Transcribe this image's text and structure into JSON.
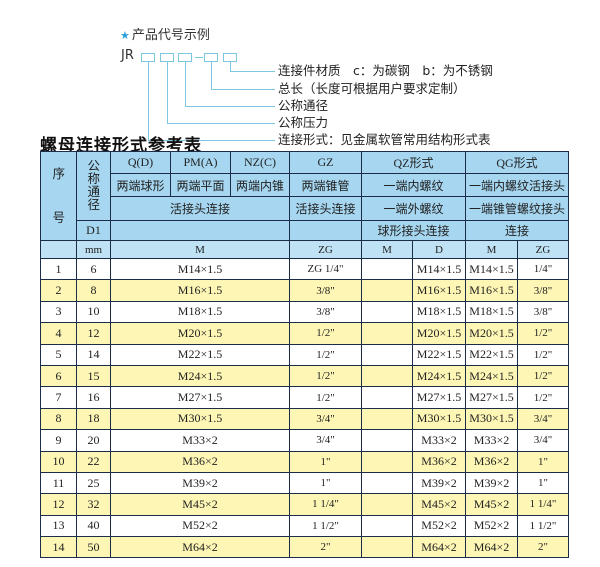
{
  "code_example": {
    "title": "产品代号示例",
    "star_icon": "star-icon",
    "prefix": "JR",
    "separator": "-",
    "labels": [
      "连接件材质　c：为碳钢　b：为不锈钢",
      "总长（长度可根据用户要求定制）",
      "公称通径",
      "公称压力",
      "连接形式：见金属软管常用结构形式表"
    ]
  },
  "table_title": "螺母连接形式参考表",
  "colors": {
    "header": "#a6d6f0",
    "stripe": "#fdf6b5",
    "border": "#1c2d4a",
    "line": "#7cc8e0"
  },
  "header": {
    "seq": "序号",
    "dn": "公称通径",
    "row1": {
      "q": "Q(D)",
      "pm": "PM(A)",
      "nz": "NZ(C)",
      "gz": "GZ",
      "qz": "QZ形式",
      "qg": "QG形式"
    },
    "row2": {
      "q": "两端球形",
      "pm": "两端平面",
      "nz": "两端内锥",
      "gz": "两端锥管",
      "qz": "一端内螺纹",
      "qg": "一端内螺纹活接头"
    },
    "row3": {
      "qpmnz": "活接头连接",
      "gz": "活接头连接",
      "qz": "一端外螺纹",
      "qg": "一端锥管螺纹接头"
    },
    "row4": {
      "d1": "D1",
      "qz": "球形接头连接",
      "qg": "连接"
    },
    "row5": {
      "unit": "mm",
      "m": "M",
      "zg": "ZG",
      "qz_m": "M",
      "qz_d": "D",
      "qg_m": "M",
      "qg_zg": "ZG"
    }
  },
  "rows": [
    {
      "no": "1",
      "dn": "6",
      "m": "M14×1.5",
      "zg": "ZG 1/4\"",
      "qz_m": "",
      "qz_d": "M14×1.5",
      "qg_m": "M14×1.5",
      "qg_zg": "1/4\""
    },
    {
      "no": "2",
      "dn": "8",
      "m": "M16×1.5",
      "zg": "3/8\"",
      "qz_m": "",
      "qz_d": "M16×1.5",
      "qg_m": "M16×1.5",
      "qg_zg": "3/8\""
    },
    {
      "no": "3",
      "dn": "10",
      "m": "M18×1.5",
      "zg": "3/8\"",
      "qz_m": "",
      "qz_d": "M18×1.5",
      "qg_m": "M18×1.5",
      "qg_zg": "3/8\""
    },
    {
      "no": "4",
      "dn": "12",
      "m": "M20×1.5",
      "zg": "1/2\"",
      "qz_m": "",
      "qz_d": "M20×1.5",
      "qg_m": "M20×1.5",
      "qg_zg": "1/2\""
    },
    {
      "no": "5",
      "dn": "14",
      "m": "M22×1.5",
      "zg": "1/2\"",
      "qz_m": "",
      "qz_d": "M22×1.5",
      "qg_m": "M22×1.5",
      "qg_zg": "1/2\""
    },
    {
      "no": "6",
      "dn": "15",
      "m": "M24×1.5",
      "zg": "1/2\"",
      "qz_m": "",
      "qz_d": "M24×1.5",
      "qg_m": "M24×1.5",
      "qg_zg": "1/2\""
    },
    {
      "no": "7",
      "dn": "16",
      "m": "M27×1.5",
      "zg": "1/2\"",
      "qz_m": "",
      "qz_d": "M27×1.5",
      "qg_m": "M27×1.5",
      "qg_zg": "1/2\""
    },
    {
      "no": "8",
      "dn": "18",
      "m": "M30×1.5",
      "zg": "3/4\"",
      "qz_m": "",
      "qz_d": "M30×1.5",
      "qg_m": "M30×1.5",
      "qg_zg": "3/4\""
    },
    {
      "no": "9",
      "dn": "20",
      "m": "M33×2",
      "zg": "3/4\"",
      "qz_m": "",
      "qz_d": "M33×2",
      "qg_m": "M33×2",
      "qg_zg": "3/4\""
    },
    {
      "no": "10",
      "dn": "22",
      "m": "M36×2",
      "zg": "1\"",
      "qz_m": "",
      "qz_d": "M36×2",
      "qg_m": "M36×2",
      "qg_zg": "1\""
    },
    {
      "no": "11",
      "dn": "25",
      "m": "M39×2",
      "zg": "1\"",
      "qz_m": "",
      "qz_d": "M39×2",
      "qg_m": "M39×2",
      "qg_zg": "1\""
    },
    {
      "no": "12",
      "dn": "32",
      "m": "M45×2",
      "zg": "1 1/4\"",
      "qz_m": "",
      "qz_d": "M45×2",
      "qg_m": "M45×2",
      "qg_zg": "1 1/4\""
    },
    {
      "no": "13",
      "dn": "40",
      "m": "M52×2",
      "zg": "1 1/2\"",
      "qz_m": "",
      "qz_d": "M52×2",
      "qg_m": "M52×2",
      "qg_zg": "1 1/2\""
    },
    {
      "no": "14",
      "dn": "50",
      "m": "M64×2",
      "zg": "2\"",
      "qz_m": "",
      "qz_d": "M64×2",
      "qg_m": "M64×2",
      "qg_zg": "2\""
    }
  ]
}
